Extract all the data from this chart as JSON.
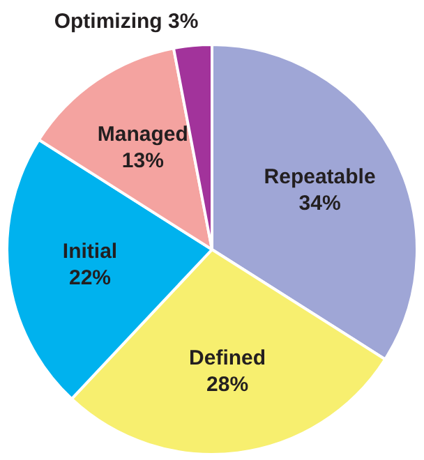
{
  "chart_data": {
    "type": "pie",
    "categories": [
      "Repeatable",
      "Defined",
      "Initial",
      "Managed",
      "Optimizing"
    ],
    "values": [
      34,
      28,
      22,
      13,
      3
    ],
    "value_labels": [
      "34%",
      "28%",
      "22%",
      "13%",
      "3%"
    ],
    "colors": [
      "#9fa6d6",
      "#f7ef6f",
      "#00b2ee",
      "#f4a3a0",
      "#a2339b"
    ],
    "legend": false
  }
}
